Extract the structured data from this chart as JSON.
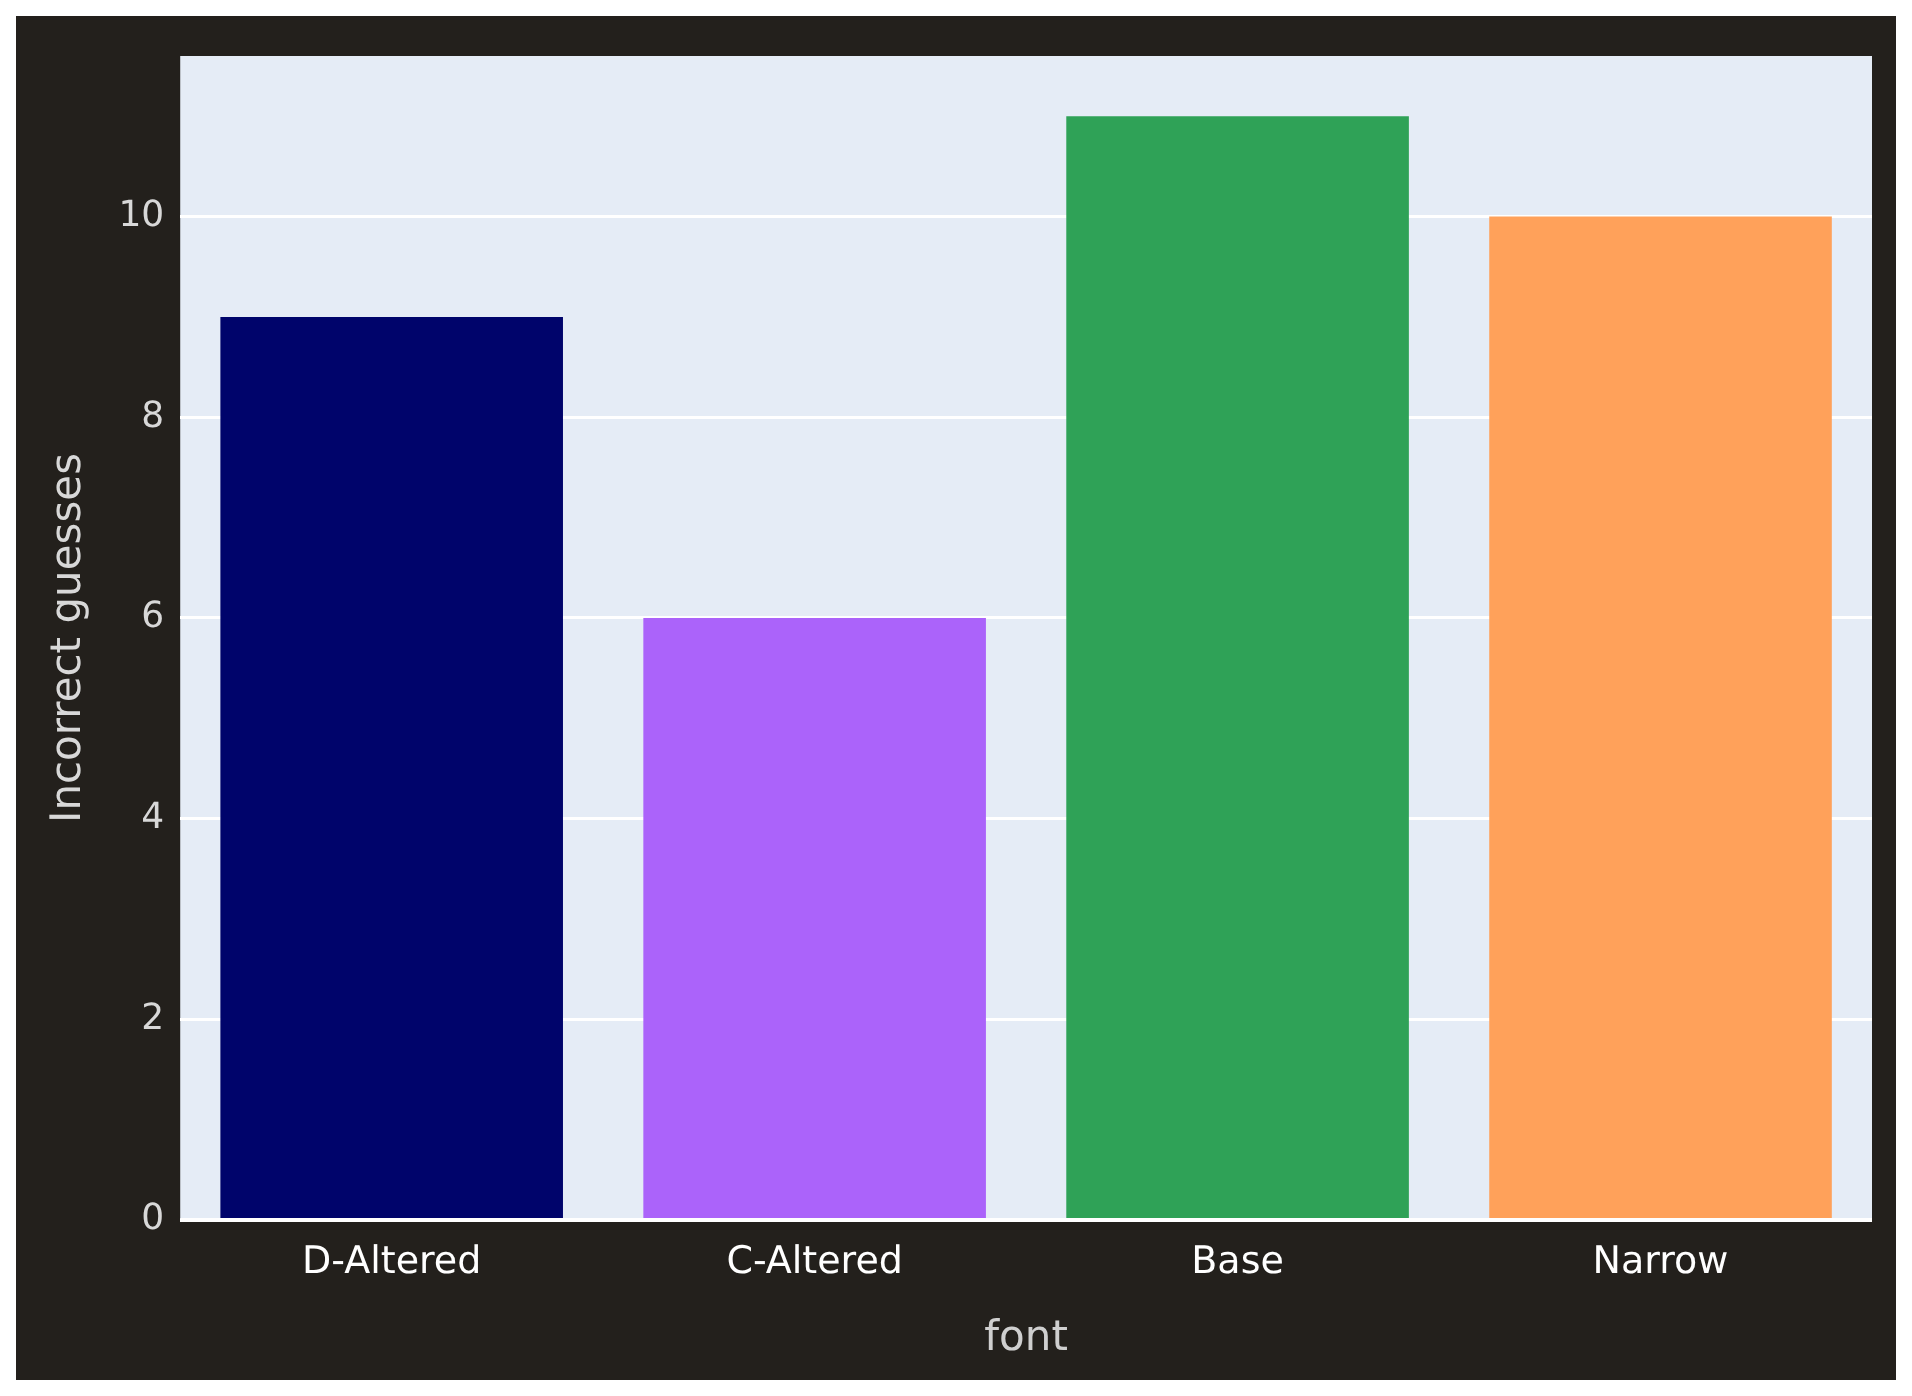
{
  "chart_data": {
    "type": "bar",
    "xlabel": "font",
    "ylabel": "Incorrect guesses",
    "categories": [
      "D-Altered",
      "C-Altered",
      "Base",
      "Narrow"
    ],
    "values": [
      9,
      6,
      11,
      10
    ],
    "colors": [
      "#00046b",
      "#ab63fa",
      "#2fa257",
      "#ffa15a"
    ],
    "ylim": [
      0,
      11.6
    ],
    "yticks": [
      0,
      2,
      4,
      6,
      8,
      10
    ],
    "grid": "y"
  }
}
